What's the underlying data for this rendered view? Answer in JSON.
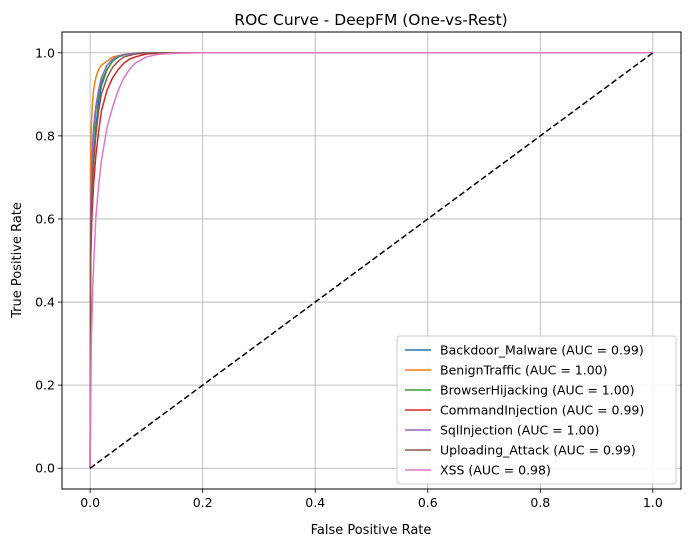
{
  "chart_data": {
    "type": "line",
    "title": "ROC Curve - DeepFM (One-vs-Rest)",
    "xlabel": "False Positive Rate",
    "ylabel": "True Positive Rate",
    "xlim": [
      -0.05,
      1.05
    ],
    "ylim": [
      -0.05,
      1.05
    ],
    "xticks": [
      "0.0",
      "0.2",
      "0.4",
      "0.6",
      "0.8",
      "1.0"
    ],
    "yticks": [
      "0.0",
      "0.2",
      "0.4",
      "0.6",
      "0.8",
      "1.0"
    ],
    "grid": true,
    "legend_position": "bottom-right",
    "series": [
      {
        "name": "Backdoor_Malware (AUC = 0.99)",
        "color": "#1f77b4",
        "x": [
          0,
          0.001,
          0.003,
          0.006,
          0.01,
          0.015,
          0.02,
          0.03,
          0.04,
          0.05,
          0.06,
          0.08,
          0.1,
          0.15,
          1.0
        ],
        "y": [
          0,
          0.52,
          0.65,
          0.74,
          0.82,
          0.88,
          0.92,
          0.96,
          0.98,
          0.99,
          0.995,
          0.999,
          1.0,
          1.0,
          1.0
        ]
      },
      {
        "name": "BenignTraffic (AUC = 1.00)",
        "color": "#ff7f0e",
        "x": [
          0,
          0.001,
          0.002,
          0.004,
          0.006,
          0.01,
          0.015,
          0.02,
          0.03,
          0.04,
          0.06,
          0.08,
          0.1,
          1.0
        ],
        "y": [
          0,
          0.72,
          0.82,
          0.88,
          0.91,
          0.94,
          0.96,
          0.97,
          0.98,
          0.99,
          0.996,
          0.999,
          1.0,
          1.0
        ]
      },
      {
        "name": "BrowserHijacking (AUC = 1.00)",
        "color": "#2ca02c",
        "x": [
          0,
          0.001,
          0.003,
          0.006,
          0.01,
          0.015,
          0.02,
          0.03,
          0.04,
          0.05,
          0.06,
          0.08,
          0.1,
          0.15,
          1.0
        ],
        "y": [
          0,
          0.6,
          0.72,
          0.8,
          0.86,
          0.9,
          0.93,
          0.96,
          0.98,
          0.99,
          0.995,
          0.999,
          1.0,
          1.0,
          1.0
        ]
      },
      {
        "name": "CommandInjection (AUC = 0.99)",
        "color": "#d62728",
        "x": [
          0,
          0.001,
          0.003,
          0.006,
          0.01,
          0.015,
          0.02,
          0.03,
          0.04,
          0.05,
          0.06,
          0.07,
          0.08,
          0.1,
          0.12,
          0.15,
          1.0
        ],
        "y": [
          0,
          0.5,
          0.6,
          0.68,
          0.75,
          0.81,
          0.86,
          0.91,
          0.94,
          0.96,
          0.975,
          0.985,
          0.99,
          0.997,
          0.999,
          1.0,
          1.0
        ]
      },
      {
        "name": "SqlInjection (AUC = 1.00)",
        "color": "#9467bd",
        "x": [
          0,
          0.001,
          0.003,
          0.006,
          0.01,
          0.015,
          0.02,
          0.03,
          0.04,
          0.05,
          0.06,
          0.08,
          0.1,
          0.15,
          1.0
        ],
        "y": [
          0,
          0.62,
          0.74,
          0.82,
          0.87,
          0.91,
          0.94,
          0.97,
          0.985,
          0.992,
          0.996,
          0.999,
          1.0,
          1.0,
          1.0
        ]
      },
      {
        "name": "Uploading_Attack (AUC = 0.99)",
        "color": "#8c564b",
        "x": [
          0,
          0.001,
          0.003,
          0.006,
          0.01,
          0.015,
          0.02,
          0.03,
          0.04,
          0.05,
          0.06,
          0.08,
          0.1,
          0.12,
          0.15,
          1.0
        ],
        "y": [
          0,
          0.55,
          0.65,
          0.73,
          0.8,
          0.86,
          0.9,
          0.94,
          0.965,
          0.98,
          0.99,
          0.997,
          0.999,
          1.0,
          1.0,
          1.0
        ]
      },
      {
        "name": "XSS (AUC = 0.98)",
        "color": "#e377c2",
        "x": [
          0,
          0.002,
          0.005,
          0.01,
          0.015,
          0.02,
          0.03,
          0.04,
          0.05,
          0.06,
          0.07,
          0.08,
          0.1,
          0.12,
          0.15,
          0.2,
          1.0
        ],
        "y": [
          0,
          0.3,
          0.45,
          0.6,
          0.68,
          0.74,
          0.82,
          0.87,
          0.91,
          0.94,
          0.96,
          0.975,
          0.99,
          0.996,
          0.999,
          1.0,
          1.0
        ]
      }
    ],
    "reference_line": {
      "x": [
        0,
        1
      ],
      "y": [
        0,
        1
      ],
      "color": "#000000",
      "style": "dashed"
    }
  }
}
